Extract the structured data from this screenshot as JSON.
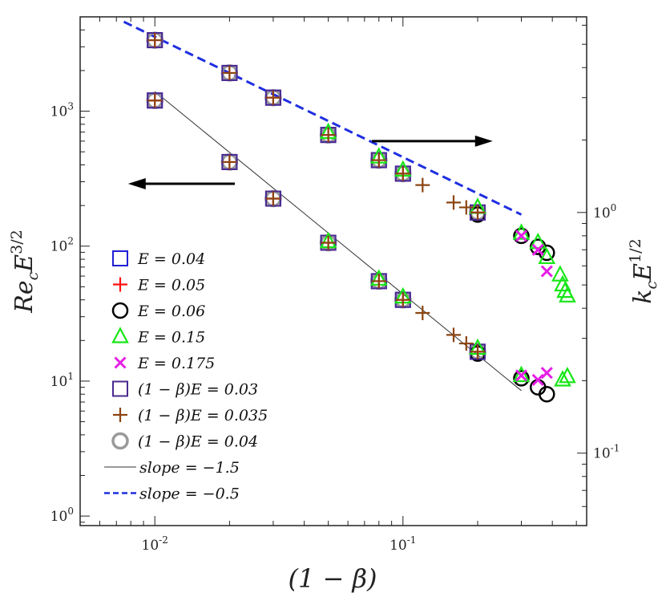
{
  "chart_data": {
    "type": "scatter",
    "xlabel": "(1 − β)",
    "ylabel_left": "Re",
    "ylabel_left_sub": "c",
    "ylabel_left_mid": "E",
    "ylabel_left_sup": "3/2",
    "ylabel_right": "k",
    "ylabel_right_sub": "c",
    "ylabel_right_mid": "E",
    "ylabel_right_sup": "1/2",
    "xscale": "log",
    "yscale": "log",
    "xlim": [
      0.005,
      0.55
    ],
    "ylim_left": [
      0.85,
      5000
    ],
    "ylim_right": [
      0.05,
      6.5
    ],
    "x_ticks": [
      {
        "value": 0.01,
        "base": "10",
        "exp": "-2"
      },
      {
        "value": 0.1,
        "base": "10",
        "exp": "-1"
      }
    ],
    "y_ticks_left": [
      {
        "value": 1,
        "base": "10",
        "exp": "0"
      },
      {
        "value": 10,
        "base": "10",
        "exp": "1"
      },
      {
        "value": 100,
        "base": "10",
        "exp": "2"
      },
      {
        "value": 1000,
        "base": "10",
        "exp": "3"
      }
    ],
    "y_ticks_right": [
      {
        "value": 0.1,
        "base": "10",
        "exp": "-1"
      },
      {
        "value": 1,
        "base": "10",
        "exp": "0"
      }
    ],
    "legend_position": "bottom-left",
    "series": [
      {
        "name": "E = 0.04",
        "label": "E = 0.04",
        "marker": "square",
        "color": "#1f1fd6",
        "left": {
          "x": [
            0.01,
            0.02,
            0.03,
            0.05,
            0.08,
            0.1,
            0.2
          ],
          "y": [
            1200,
            420,
            225,
            106,
            55,
            40,
            16.5
          ]
        },
        "right": {
          "x": [
            0.01,
            0.02,
            0.03,
            0.05,
            0.08,
            0.1,
            0.2
          ],
          "y": [
            5.2,
            3.8,
            3.0,
            2.1,
            1.65,
            1.45,
            1.0
          ]
        }
      },
      {
        "name": "E = 0.05",
        "label": "E = 0.05",
        "marker": "plus",
        "color": "#ff1010",
        "left": {
          "x": [
            0.01,
            0.02,
            0.03,
            0.05,
            0.08,
            0.1,
            0.2
          ],
          "y": [
            1200,
            420,
            225,
            106,
            55,
            40,
            16.5
          ]
        },
        "right": {
          "x": [
            0.01,
            0.02,
            0.03,
            0.05,
            0.08,
            0.1,
            0.2
          ],
          "y": [
            5.2,
            3.8,
            3.0,
            2.1,
            1.65,
            1.45,
            1.0
          ]
        }
      },
      {
        "name": "E = 0.06",
        "label": "E = 0.06",
        "marker": "circle",
        "color": "#000000",
        "left": {
          "x": [
            0.2,
            0.3,
            0.35,
            0.38
          ],
          "y": [
            16,
            10.5,
            9.0,
            8.0
          ]
        },
        "right": {
          "x": [
            0.2,
            0.3,
            0.35,
            0.38
          ],
          "y": [
            0.98,
            0.8,
            0.72,
            0.68
          ]
        }
      },
      {
        "name": "E = 0.15",
        "label": "E = 0.15",
        "marker": "triangle",
        "color": "#17e617",
        "left": {
          "x": [
            0.05,
            0.08,
            0.1,
            0.2,
            0.3,
            0.44,
            0.46
          ],
          "y": [
            108,
            57,
            42,
            17.5,
            11,
            10.2,
            10.8
          ]
        },
        "right": {
          "x": [
            0.05,
            0.08,
            0.1,
            0.2,
            0.3,
            0.35,
            0.38,
            0.43,
            0.44,
            0.45,
            0.46
          ],
          "y": [
            2.15,
            1.7,
            1.5,
            1.05,
            0.82,
            0.75,
            0.65,
            0.55,
            0.5,
            0.47,
            0.45
          ]
        }
      },
      {
        "name": "E = 0.175",
        "label": "E = 0.175",
        "marker": "cross",
        "color": "#e61ee6",
        "left": {
          "x": [
            0.3,
            0.35,
            0.38
          ],
          "y": [
            11,
            10.2,
            11.5
          ]
        },
        "right": {
          "x": [
            0.3,
            0.35,
            0.38
          ],
          "y": [
            0.8,
            0.7,
            0.57
          ]
        }
      },
      {
        "name": "(1 − β)E = 0.03",
        "label": "(1 − β)E = 0.03",
        "marker": "square",
        "color": "#4b2a8f",
        "left": {
          "x": [
            0.01,
            0.02,
            0.03,
            0.05,
            0.08,
            0.1,
            0.2
          ],
          "y": [
            1200,
            420,
            225,
            106,
            55,
            40,
            16.5
          ]
        },
        "right": {
          "x": [
            0.01,
            0.02,
            0.03,
            0.05,
            0.08,
            0.1,
            0.2
          ],
          "y": [
            5.2,
            3.8,
            3.0,
            2.1,
            1.65,
            1.45,
            1.0
          ]
        }
      },
      {
        "name": "(1 − β)E = 0.035",
        "label": "(1 − β)E = 0.035",
        "marker": "plus",
        "color": "#8b4513",
        "left": {
          "x": [
            0.01,
            0.02,
            0.03,
            0.05,
            0.08,
            0.1,
            0.12,
            0.16,
            0.18,
            0.2
          ],
          "y": [
            1200,
            420,
            225,
            106,
            55,
            40,
            32,
            22,
            19,
            16.5
          ]
        },
        "right": {
          "x": [
            0.01,
            0.02,
            0.03,
            0.05,
            0.08,
            0.1,
            0.12,
            0.16,
            0.18,
            0.2
          ],
          "y": [
            5.2,
            3.8,
            3.0,
            2.1,
            1.65,
            1.45,
            1.3,
            1.1,
            1.05,
            1.0
          ]
        }
      },
      {
        "name": "(1 − β)E = 0.04",
        "label": "(1 − β)E = 0.04",
        "marker": "circle-filled",
        "color": "#9a9a9a",
        "left": {
          "x": [
            0.01,
            0.02,
            0.03,
            0.05,
            0.08,
            0.1,
            0.2
          ],
          "y": [
            1200,
            420,
            225,
            106,
            55,
            40,
            16.5
          ]
        },
        "right": {
          "x": [
            0.01,
            0.02,
            0.03,
            0.05,
            0.08,
            0.1,
            0.2
          ],
          "y": [
            5.2,
            3.8,
            3.0,
            2.1,
            1.65,
            1.45,
            1.0
          ]
        }
      }
    ],
    "lines": [
      {
        "name": "slope-1.5",
        "label": "slope = −1.5",
        "color": "#333333",
        "style": "solid",
        "axis": "left",
        "x": [
          0.01,
          0.3
        ],
        "y": [
          1400,
          8.5
        ]
      },
      {
        "name": "slope-0.5",
        "label": "slope = −0.5",
        "color": "#1f2fe0",
        "style": "dashed",
        "axis": "right",
        "x": [
          0.0075,
          0.3
        ],
        "y": [
          6.2,
          0.98
        ]
      }
    ],
    "arrows": [
      {
        "direction": "left",
        "axis": "left",
        "x_from": 0.021,
        "x_to": 0.0078,
        "y": 290
      },
      {
        "direction": "right",
        "axis": "left",
        "x_from": 0.075,
        "x_to": 0.23,
        "y": 600
      }
    ]
  }
}
